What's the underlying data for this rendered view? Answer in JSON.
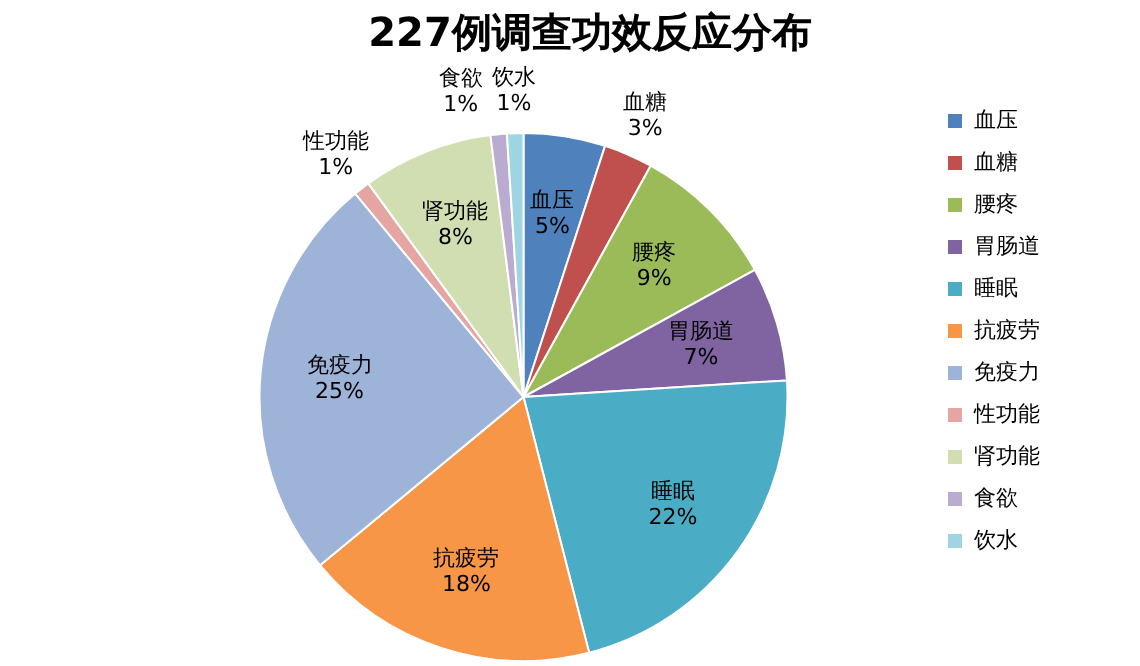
{
  "chart_data": {
    "type": "pie",
    "title": "227例调查功效反应分布",
    "categories": [
      "血压",
      "血糖",
      "腰疼",
      "胃肠道",
      "睡眠",
      "抗疲劳",
      "免疫力",
      "性功能",
      "肾功能",
      "食欲",
      "饮水"
    ],
    "values": [
      5,
      3,
      9,
      7,
      22,
      18,
      25,
      1,
      8,
      1,
      1
    ],
    "colors": [
      "#4f81bd",
      "#c0504d",
      "#9bbb59",
      "#8064a2",
      "#4bacc6",
      "#f79646",
      "#9eb3d8",
      "#e5a5a3",
      "#d1deb2",
      "#b9acd0",
      "#9fd4e3"
    ],
    "value_labels": [
      "5%",
      "3%",
      "9%",
      "7%",
      "22%",
      "18%",
      "25%",
      "1%",
      "8%",
      "1%",
      "1%"
    ],
    "legend": "right"
  }
}
